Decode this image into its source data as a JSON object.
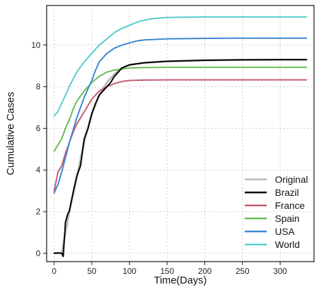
{
  "chart_data": {
    "type": "line",
    "title": "",
    "xlabel": "Time(Days)",
    "ylabel": "Cumulative Cases",
    "xlim": [
      -10,
      345
    ],
    "ylim": [
      -0.4,
      11.9
    ],
    "x_ticks": [
      0,
      50,
      100,
      150,
      200,
      250,
      300
    ],
    "y_ticks": [
      0,
      2,
      4,
      6,
      8,
      10
    ],
    "grid": true,
    "legend_position": "bottom-right",
    "series": [
      {
        "name": "Original",
        "color": "#bbbbbb",
        "x": [
          0,
          10,
          20,
          30,
          40,
          50,
          60,
          70,
          80,
          90,
          100,
          120,
          150,
          200,
          250,
          300,
          335
        ],
        "y": [
          0.0,
          0.0,
          2.0,
          3.6,
          5.4,
          6.7,
          7.6,
          8.2,
          8.6,
          8.9,
          9.05,
          9.15,
          9.22,
          9.27,
          9.29,
          9.3,
          9.3
        ]
      },
      {
        "name": "Brazil",
        "color": "#000000",
        "x": [
          0,
          5,
          10,
          12,
          15,
          18,
          20,
          25,
          30,
          35,
          40,
          45,
          50,
          55,
          60,
          65,
          70,
          75,
          80,
          90,
          100,
          110,
          120,
          150,
          200,
          250,
          300,
          335
        ],
        "y": [
          0.0,
          0.02,
          0.0,
          -0.15,
          1.5,
          1.9,
          2.0,
          2.9,
          3.7,
          4.2,
          5.5,
          6.0,
          6.7,
          7.2,
          7.6,
          7.8,
          8.0,
          8.2,
          8.5,
          8.9,
          9.05,
          9.1,
          9.15,
          9.22,
          9.27,
          9.29,
          9.3,
          9.3
        ]
      },
      {
        "name": "France",
        "color": "#c45a6c",
        "x": [
          0,
          5,
          10,
          15,
          20,
          25,
          30,
          40,
          50,
          60,
          70,
          80,
          90,
          100,
          120,
          150,
          200,
          250,
          300,
          335
        ],
        "y": [
          3.0,
          3.9,
          4.2,
          4.8,
          5.3,
          5.8,
          6.2,
          6.8,
          7.4,
          7.8,
          8.0,
          8.15,
          8.25,
          8.3,
          8.32,
          8.33,
          8.33,
          8.33,
          8.33,
          8.33
        ]
      },
      {
        "name": "Spain",
        "color": "#66bb55",
        "x": [
          0,
          5,
          10,
          15,
          20,
          25,
          30,
          40,
          50,
          60,
          70,
          80,
          90,
          100,
          120,
          150,
          200,
          250,
          300,
          335
        ],
        "y": [
          4.9,
          5.2,
          5.5,
          6.0,
          6.4,
          6.9,
          7.3,
          7.8,
          8.2,
          8.5,
          8.7,
          8.8,
          8.85,
          8.9,
          8.92,
          8.93,
          8.93,
          8.93,
          8.93,
          8.93
        ]
      },
      {
        "name": "USA",
        "color": "#3a86cf",
        "x": [
          0,
          5,
          10,
          15,
          20,
          25,
          30,
          40,
          50,
          55,
          60,
          70,
          80,
          90,
          100,
          110,
          120,
          150,
          200,
          250,
          300,
          335
        ],
        "y": [
          2.9,
          3.3,
          3.9,
          4.6,
          5.3,
          5.9,
          6.5,
          7.5,
          8.3,
          8.8,
          9.2,
          9.6,
          9.85,
          10.0,
          10.1,
          10.2,
          10.25,
          10.3,
          10.32,
          10.33,
          10.33,
          10.33
        ]
      },
      {
        "name": "World",
        "color": "#55cccc",
        "x": [
          0,
          5,
          10,
          20,
          30,
          40,
          50,
          60,
          70,
          80,
          90,
          100,
          110,
          120,
          130,
          150,
          200,
          250,
          300,
          335
        ],
        "y": [
          6.6,
          6.8,
          7.2,
          8.0,
          8.7,
          9.2,
          9.6,
          10.0,
          10.3,
          10.6,
          10.8,
          10.95,
          11.1,
          11.2,
          11.27,
          11.32,
          11.35,
          11.35,
          11.35,
          11.35
        ]
      }
    ]
  }
}
